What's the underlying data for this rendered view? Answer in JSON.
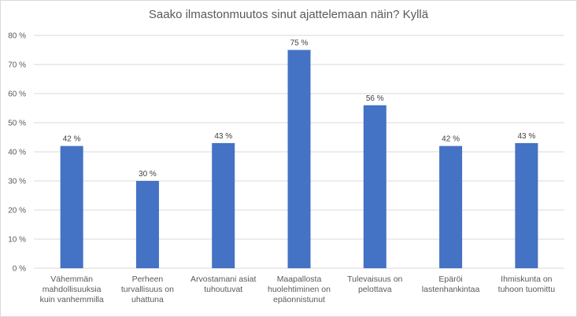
{
  "chart_data": {
    "type": "bar",
    "title": "Saako ilmastonmuutos sinut ajattelemaan näin? Kyllä",
    "categories": [
      [
        "Vähemmän",
        "mahdollisuuksia",
        "kuin vanhemmilla"
      ],
      [
        "Perheen",
        "turvallisuus on",
        "uhattuna"
      ],
      [
        "Arvostamani asiat",
        "tuhoutuvat"
      ],
      [
        "Maapallosta",
        "huolehtiminen on",
        "epäonnistunut"
      ],
      [
        "Tulevaisuus on",
        "pelottava"
      ],
      [
        "Epäröi",
        "lastenhankintaa"
      ],
      [
        "Ihmiskunta on",
        "tuhoon tuomittu"
      ]
    ],
    "values": [
      42,
      30,
      43,
      75,
      56,
      42,
      43
    ],
    "data_labels": [
      "42 %",
      "30 %",
      "43 %",
      "75 %",
      "56 %",
      "42 %",
      "43 %"
    ],
    "ylim": [
      0,
      80
    ],
    "yticks": [
      "0 %",
      "10 %",
      "20 %",
      "30 %",
      "40 %",
      "50 %",
      "60 %",
      "70 %",
      "80 %"
    ],
    "grid": true,
    "bar_color": "#4472c4",
    "grid_color": "#d9d9d9"
  }
}
